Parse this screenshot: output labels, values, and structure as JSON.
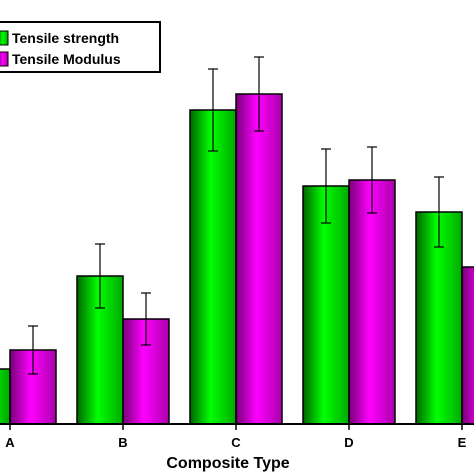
{
  "chart_data": {
    "type": "bar",
    "title": "",
    "xlabel": "Composite Type",
    "ylabel": "",
    "categories": [
      "A",
      "B",
      "C",
      "D",
      "E"
    ],
    "series": [
      {
        "name": "Tensile strength",
        "color": "#00dd00",
        "values": [
          55,
          148,
          314,
          238,
          212
        ],
        "errors": [
          0,
          32,
          41,
          37,
          35
        ]
      },
      {
        "name": "Tensile Modulus",
        "color": "#dd00dd",
        "values": [
          74,
          105,
          330,
          244,
          157
        ],
        "errors": [
          24,
          26,
          37,
          33,
          0
        ]
      }
    ],
    "ylim": [
      0,
      424
    ],
    "grid": false,
    "legend_position": "top-left"
  }
}
